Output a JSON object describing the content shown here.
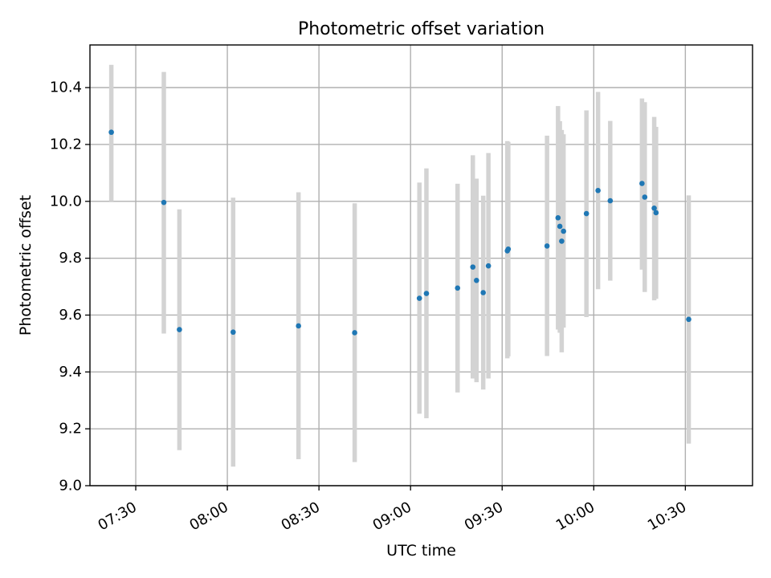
{
  "chart_data": {
    "type": "scatter",
    "title": "Photometric offset variation",
    "xlabel": "UTC time",
    "ylabel": "Photometric offset",
    "xlim_minutes": [
      435,
      652
    ],
    "ylim": [
      9.0,
      10.55
    ],
    "grid": true,
    "colors": {
      "point": "#1f77b4",
      "errorbar": "#d3d3d3"
    },
    "x_ticks": [
      {
        "minutes": 450,
        "label": "07:30"
      },
      {
        "minutes": 480,
        "label": "08:00"
      },
      {
        "minutes": 510,
        "label": "08:30"
      },
      {
        "minutes": 540,
        "label": "09:00"
      },
      {
        "minutes": 570,
        "label": "09:30"
      },
      {
        "minutes": 600,
        "label": "10:00"
      },
      {
        "minutes": 630,
        "label": "10:30"
      }
    ],
    "y_ticks": [
      {
        "value": 9.0,
        "label": "9.0"
      },
      {
        "value": 9.2,
        "label": "9.2"
      },
      {
        "value": 9.4,
        "label": "9.4"
      },
      {
        "value": 9.6,
        "label": "9.6"
      },
      {
        "value": 9.8,
        "label": "9.8"
      },
      {
        "value": 10.0,
        "label": "10.0"
      },
      {
        "value": 10.2,
        "label": "10.2"
      },
      {
        "value": 10.4,
        "label": "10.4"
      }
    ],
    "points": [
      {
        "minutes": 442.0,
        "y": 10.243,
        "low": 10.0,
        "high": 10.48
      },
      {
        "minutes": 459.2,
        "y": 9.996,
        "low": 9.535,
        "high": 10.455
      },
      {
        "minutes": 464.3,
        "y": 9.549,
        "low": 9.125,
        "high": 9.972
      },
      {
        "minutes": 481.9,
        "y": 9.54,
        "low": 9.067,
        "high": 10.013
      },
      {
        "minutes": 503.3,
        "y": 9.562,
        "low": 9.093,
        "high": 10.032
      },
      {
        "minutes": 521.7,
        "y": 9.538,
        "low": 9.083,
        "high": 9.993
      },
      {
        "minutes": 542.9,
        "y": 9.659,
        "low": 9.253,
        "high": 10.066
      },
      {
        "minutes": 545.2,
        "y": 9.676,
        "low": 9.237,
        "high": 10.116
      },
      {
        "minutes": 555.4,
        "y": 9.695,
        "low": 9.328,
        "high": 10.062
      },
      {
        "minutes": 560.4,
        "y": 9.769,
        "low": 9.377,
        "high": 10.162
      },
      {
        "minutes": 561.6,
        "y": 9.722,
        "low": 9.364,
        "high": 10.08
      },
      {
        "minutes": 563.8,
        "y": 9.679,
        "low": 9.338,
        "high": 10.02
      },
      {
        "minutes": 565.5,
        "y": 9.773,
        "low": 9.377,
        "high": 10.17
      },
      {
        "minutes": 571.7,
        "y": 9.826,
        "low": 9.448,
        "high": 10.212
      },
      {
        "minutes": 572.0,
        "y": 9.832,
        "low": 9.455,
        "high": 10.209
      },
      {
        "minutes": 584.7,
        "y": 9.843,
        "low": 9.456,
        "high": 10.231
      },
      {
        "minutes": 588.3,
        "y": 9.942,
        "low": 9.549,
        "high": 10.335
      },
      {
        "minutes": 588.9,
        "y": 9.912,
        "low": 9.538,
        "high": 10.282
      },
      {
        "minutes": 589.5,
        "y": 9.86,
        "low": 9.469,
        "high": 10.251
      },
      {
        "minutes": 590.1,
        "y": 9.895,
        "low": 9.556,
        "high": 10.236
      },
      {
        "minutes": 597.6,
        "y": 9.957,
        "low": 9.593,
        "high": 10.32
      },
      {
        "minutes": 601.4,
        "y": 10.038,
        "low": 9.691,
        "high": 10.385
      },
      {
        "minutes": 605.4,
        "y": 10.002,
        "low": 9.721,
        "high": 10.283
      },
      {
        "minutes": 615.8,
        "y": 10.063,
        "low": 9.76,
        "high": 10.362
      },
      {
        "minutes": 616.7,
        "y": 10.015,
        "low": 9.681,
        "high": 10.349
      },
      {
        "minutes": 619.8,
        "y": 9.976,
        "low": 9.652,
        "high": 10.297
      },
      {
        "minutes": 620.4,
        "y": 9.96,
        "low": 9.657,
        "high": 10.262
      },
      {
        "minutes": 631.1,
        "y": 9.585,
        "low": 9.148,
        "high": 10.021
      }
    ]
  }
}
